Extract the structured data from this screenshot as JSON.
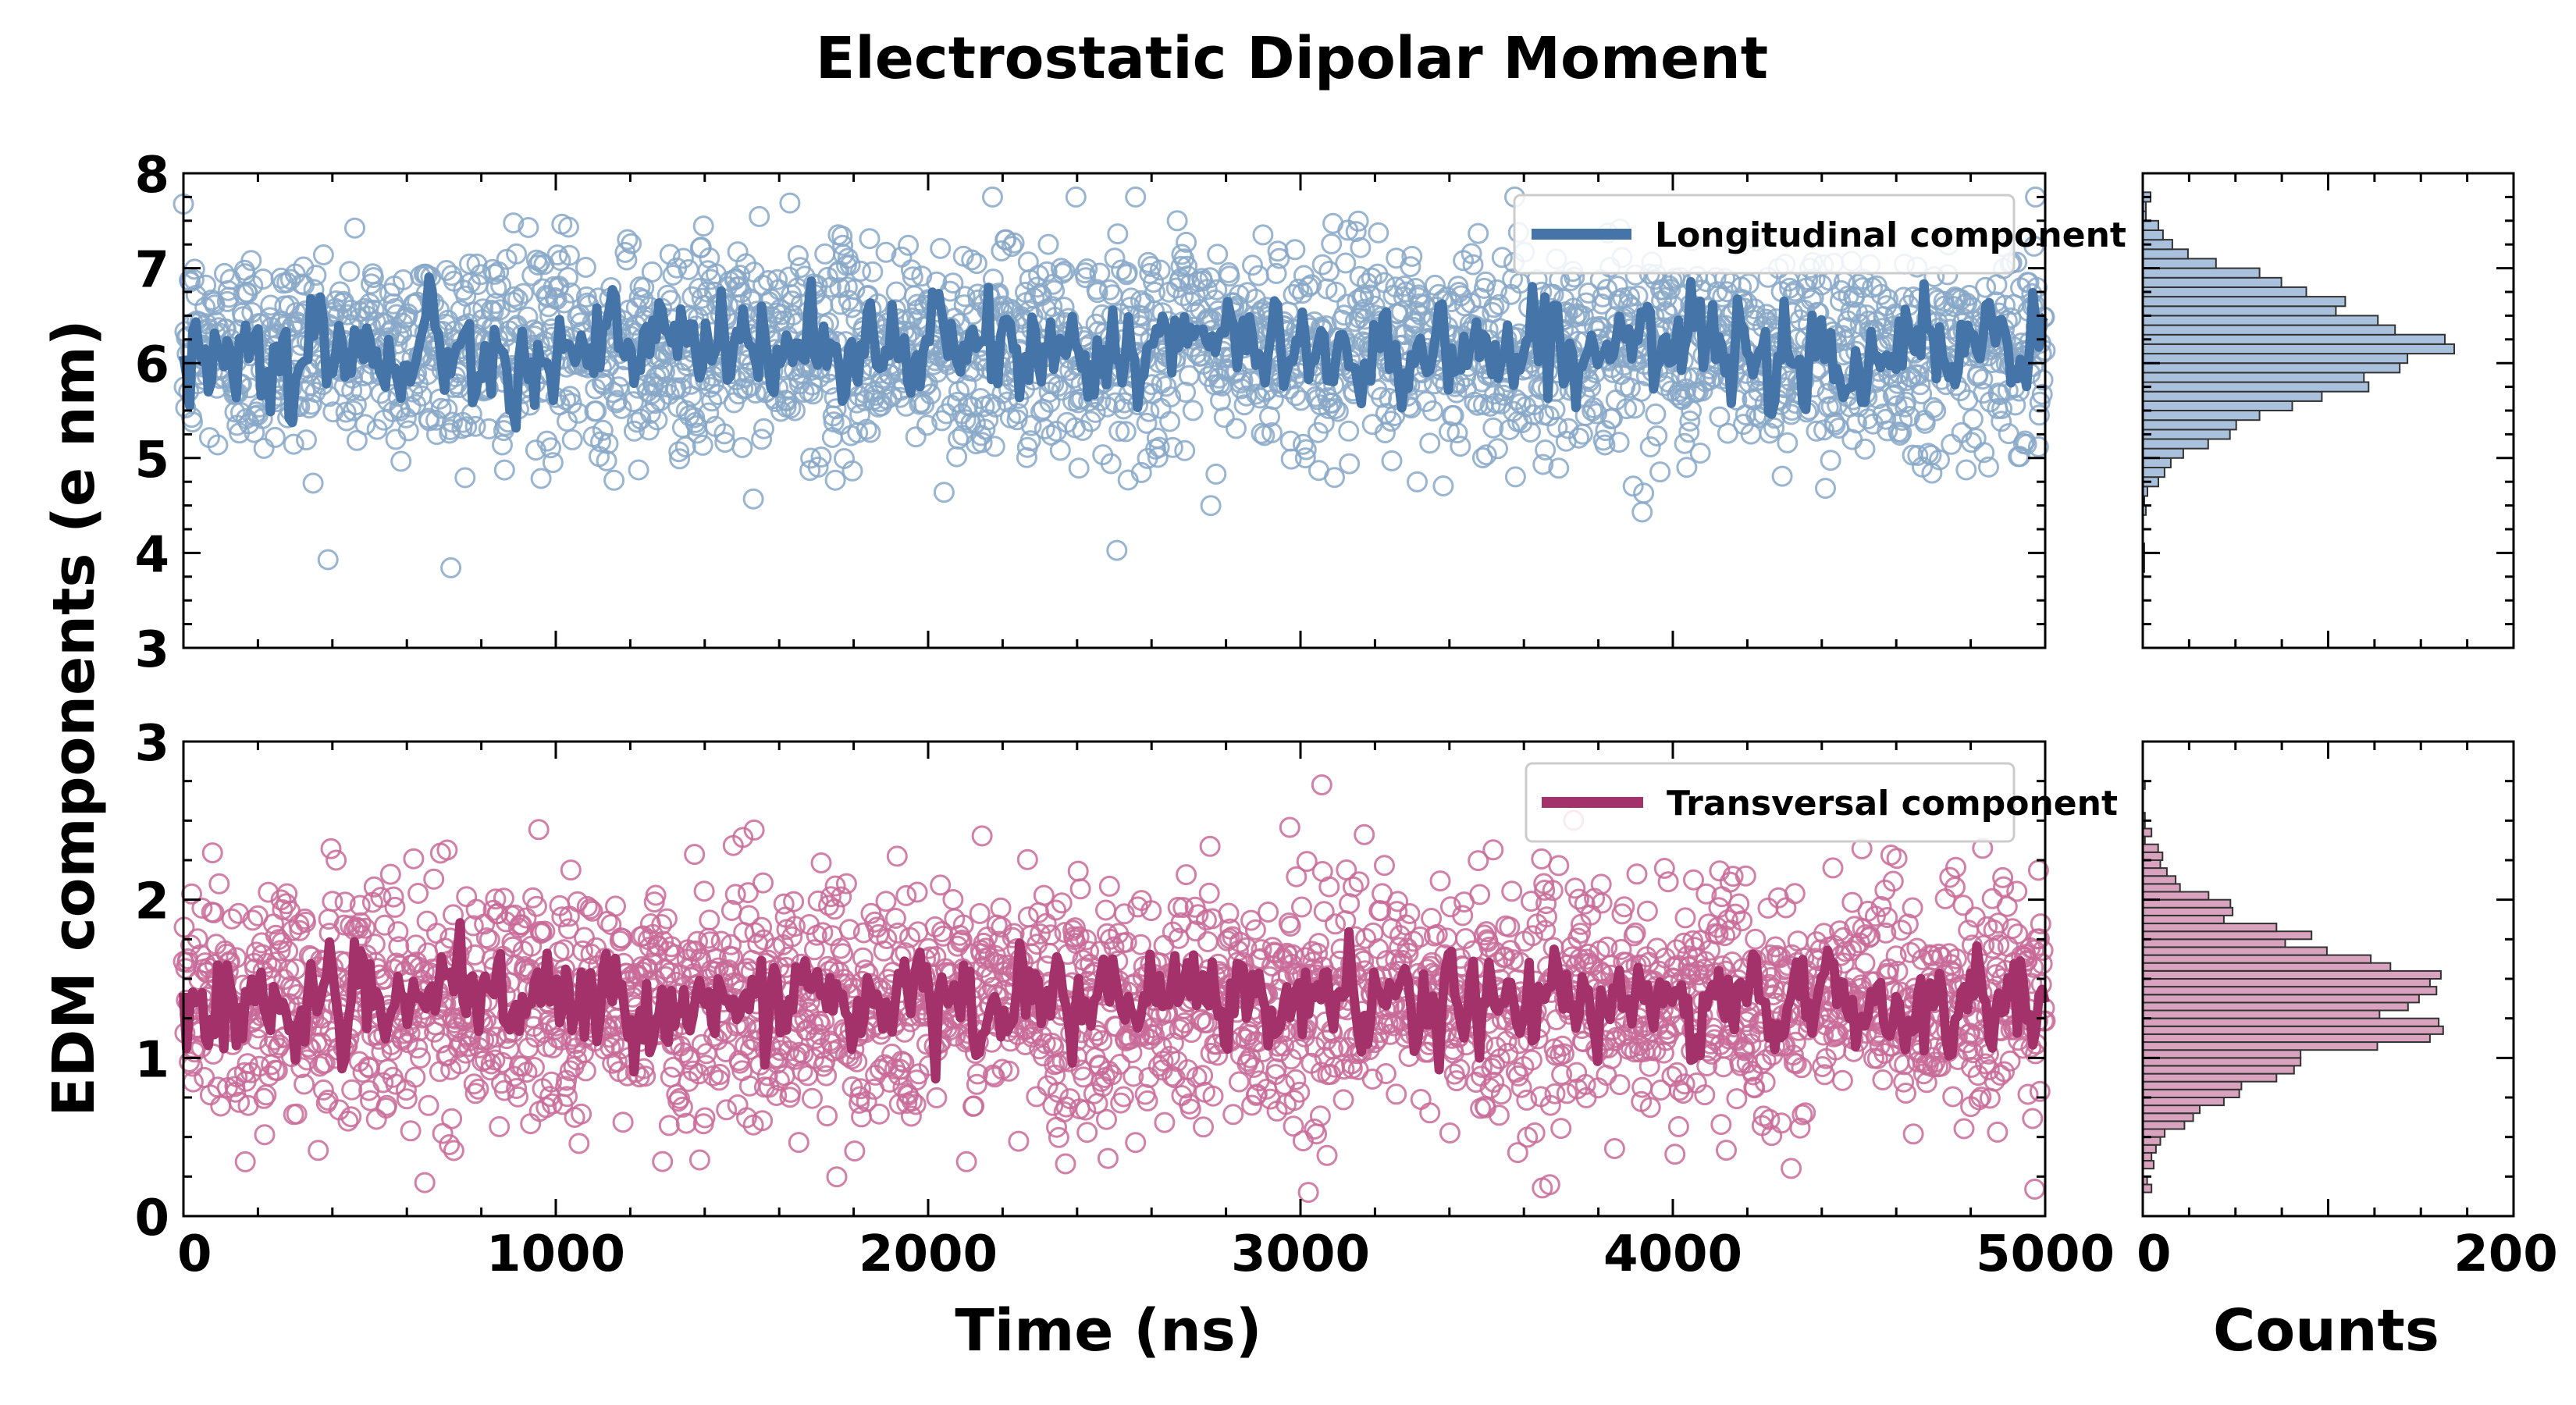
{
  "chart_data": {
    "type": "scatter+line+histogram",
    "title": "Electrostatic Dipolar Moment",
    "ylabel": "EDM components (e nm)",
    "xlabel": "Time (ns)",
    "hist_xlabel": "Counts",
    "xlim": [
      0,
      5000
    ],
    "xticks": [
      "0",
      "1000",
      "2000",
      "3000",
      "4000",
      "5000"
    ],
    "hist_xlim": [
      0,
      200
    ],
    "hist_xticks": [
      "0",
      "200"
    ],
    "panels": [
      {
        "name": "longitudinal",
        "legend": "Longitudinal component",
        "color": "#4575a8",
        "marker_color": "#88a8c8",
        "hist_fill": "#a9c1dc",
        "ylim": [
          3,
          8
        ],
        "yticks": [
          "3",
          "4",
          "5",
          "6",
          "7",
          "8"
        ],
        "mean": 6.15,
        "std": 0.55,
        "line_noise": 0.38,
        "n_points": 2500,
        "hist_bin_width": 0.1,
        "hist_peak": 168
      },
      {
        "name": "transversal",
        "legend": "Transversal component",
        "color": "#a3326b",
        "marker_color": "#c96b99",
        "hist_fill": "#d9a3bf",
        "ylim": [
          0,
          3
        ],
        "yticks": [
          "0",
          "1",
          "2",
          "3"
        ],
        "mean": 1.35,
        "std": 0.38,
        "line_noise": 0.22,
        "n_points": 2500,
        "hist_bin_width": 0.05,
        "hist_peak": 162
      }
    ]
  }
}
